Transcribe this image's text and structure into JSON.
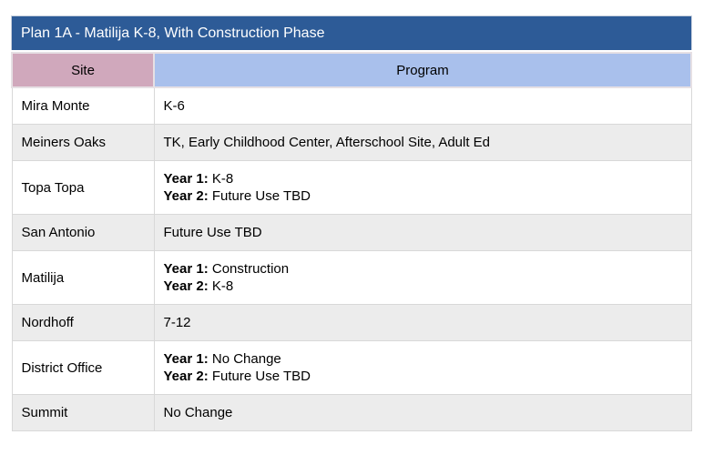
{
  "table": {
    "title": "Plan 1A - Matilija K-8, With Construction Phase",
    "columns": [
      {
        "label": "Site"
      },
      {
        "label": "Program"
      }
    ],
    "rows": [
      {
        "site": "Mira Monte",
        "program_lines": [
          {
            "bold": "",
            "text": "K-6"
          }
        ]
      },
      {
        "site": "Meiners Oaks",
        "program_lines": [
          {
            "bold": "",
            "text": "TK, Early Childhood Center, Afterschool Site, Adult Ed"
          }
        ]
      },
      {
        "site": "Topa Topa",
        "program_lines": [
          {
            "bold": "Year 1:",
            "text": " K-8"
          },
          {
            "bold": "Year 2:",
            "text": " Future Use TBD"
          }
        ]
      },
      {
        "site": "San Antonio",
        "program_lines": [
          {
            "bold": "",
            "text": "Future Use TBD"
          }
        ]
      },
      {
        "site": "Matilija",
        "program_lines": [
          {
            "bold": "Year 1:",
            "text": " Construction"
          },
          {
            "bold": "Year 2:",
            "text": " K-8"
          }
        ]
      },
      {
        "site": "Nordhoff",
        "program_lines": [
          {
            "bold": "",
            "text": "7-12"
          }
        ]
      },
      {
        "site": "District Office",
        "program_lines": [
          {
            "bold": "Year 1:",
            "text": " No Change"
          },
          {
            "bold": "Year 2:",
            "text": " Future Use TBD"
          }
        ]
      },
      {
        "site": "Summit",
        "program_lines": [
          {
            "bold": "",
            "text": "No Change"
          }
        ]
      }
    ],
    "colors": {
      "title_bg": "#2d5b97",
      "title_text": "#ffffff",
      "site_header_bg": "#d0a8bc",
      "program_header_bg": "#a9c0ec",
      "row_bg": "#ffffff",
      "row_alt_bg": "#ececec",
      "border": "#d8d8d8"
    }
  }
}
